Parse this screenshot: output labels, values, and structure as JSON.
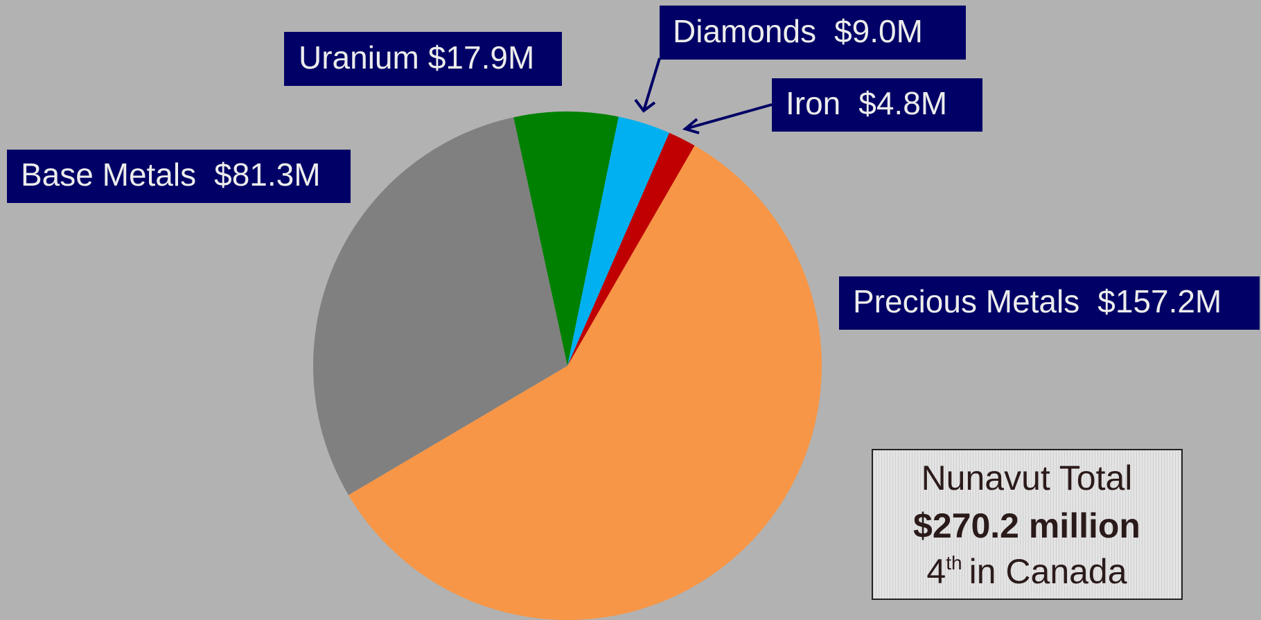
{
  "chart_data": {
    "type": "pie",
    "categories": [
      "Precious Metals",
      "Base Metals",
      "Uranium",
      "Diamonds",
      "Iron"
    ],
    "values": [
      157.2,
      81.3,
      17.9,
      9.0,
      4.8
    ],
    "value_labels": [
      "$157.2M",
      "$81.3M",
      "$17.9M",
      "$9.0M",
      "$4.8M"
    ],
    "colors": [
      "#f79646",
      "#808080",
      "#008000",
      "#00b0f0",
      "#c00000"
    ],
    "total_box": {
      "title": "Nunavut Total",
      "total": "$270.2 million",
      "rank": "4",
      "rank_suffix": "th",
      "rank_text": "in Canada"
    }
  }
}
